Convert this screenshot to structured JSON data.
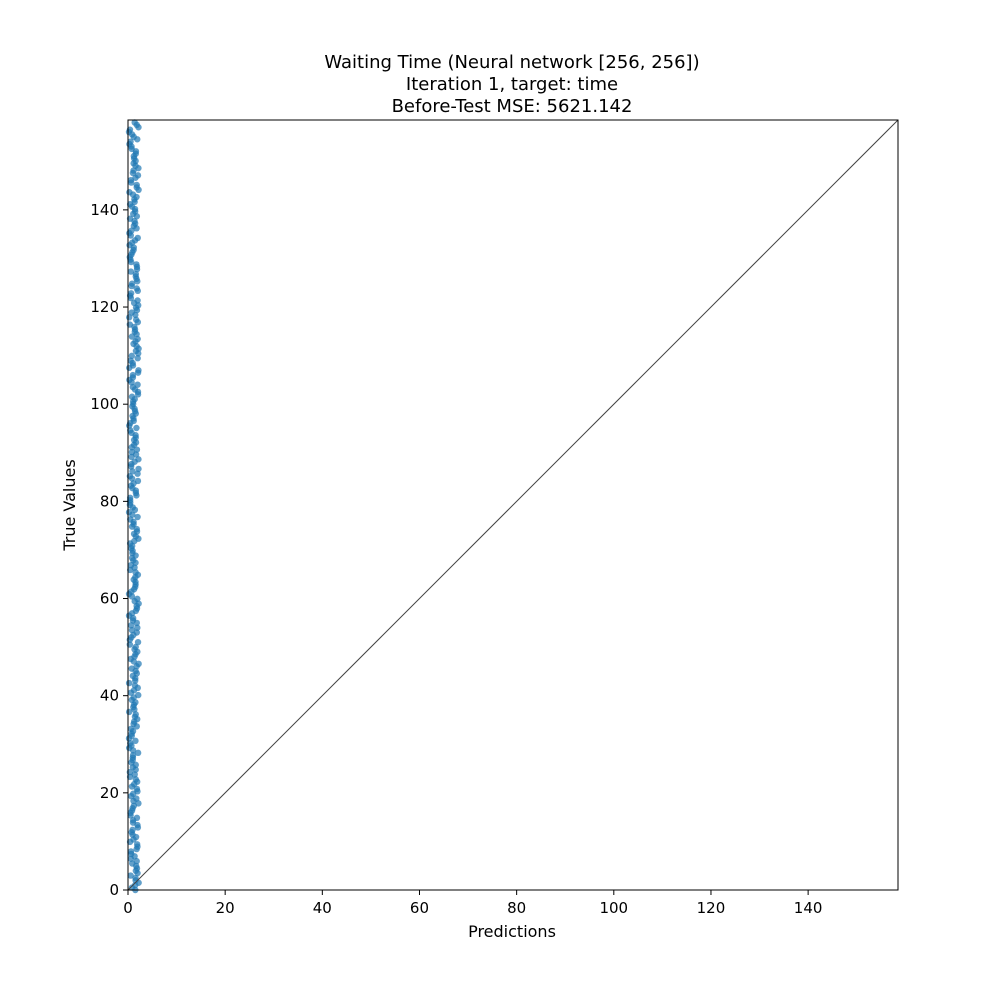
{
  "chart_data": {
    "type": "scatter",
    "title_lines": [
      "Waiting Time (Neural network [256, 256])",
      "Iteration 1, target: time",
      "Before-Test MSE: 5621.142"
    ],
    "xlabel": "Predictions",
    "ylabel": "True Values",
    "xlim": [
      0,
      158.5
    ],
    "ylim": [
      0,
      158.5
    ],
    "xticks": [
      0,
      20,
      40,
      60,
      80,
      100,
      120,
      140
    ],
    "yticks": [
      0,
      20,
      40,
      60,
      80,
      100,
      120,
      140
    ],
    "grid": false,
    "reference_line": "y = x",
    "point_color": "#1f77b4",
    "series": [
      {
        "x_range": [
          0.2,
          2.2
        ],
        "y_range": [
          0,
          158
        ],
        "description_points": 320
      }
    ]
  }
}
